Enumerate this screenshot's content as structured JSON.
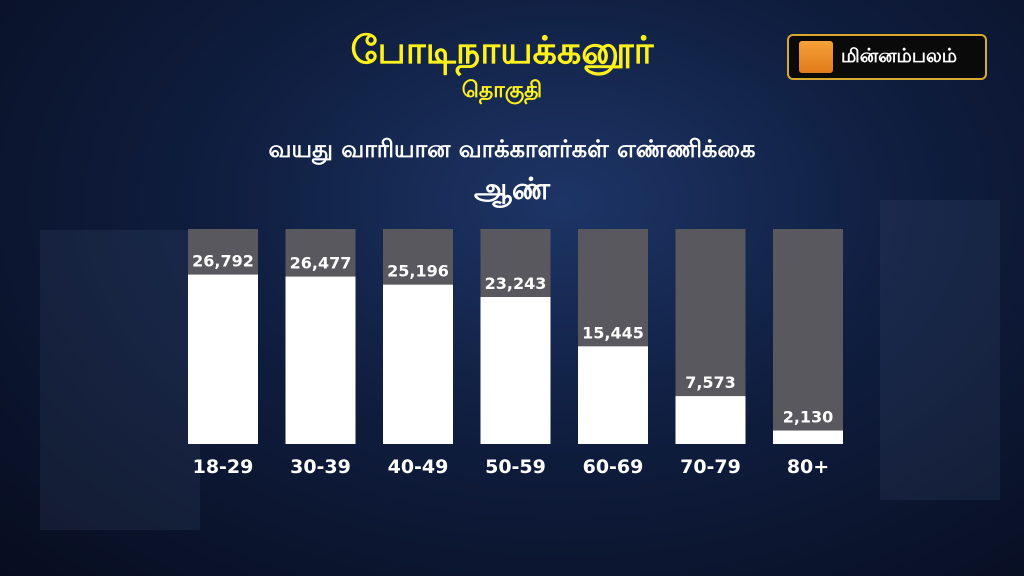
{
  "header": {
    "constituency": "போடிநாயக்கனூர்",
    "subtitle": "தொகுதி"
  },
  "logo": {
    "text": "மின்னம்பலம்",
    "accent": "#e98a24"
  },
  "chart_data": {
    "type": "bar",
    "title": "வயது வாரியான வாக்காளர்கள் எண்ணிக்கை",
    "subtitle": "ஆண்",
    "categories": [
      "18-29",
      "30-39",
      "40-49",
      "50-59",
      "60-69",
      "70-79",
      "80+"
    ],
    "values": [
      26792,
      26477,
      25196,
      23243,
      15445,
      7573,
      2130
    ],
    "labels": [
      "26,792",
      "26,477",
      "25,196",
      "23,243",
      "15,445",
      "7,573",
      "2,130"
    ],
    "ylim": [
      0,
      34000
    ],
    "grid": false,
    "colors": {
      "bar": "#ffffff",
      "track": "#58585e",
      "title": "#fff21a"
    }
  }
}
